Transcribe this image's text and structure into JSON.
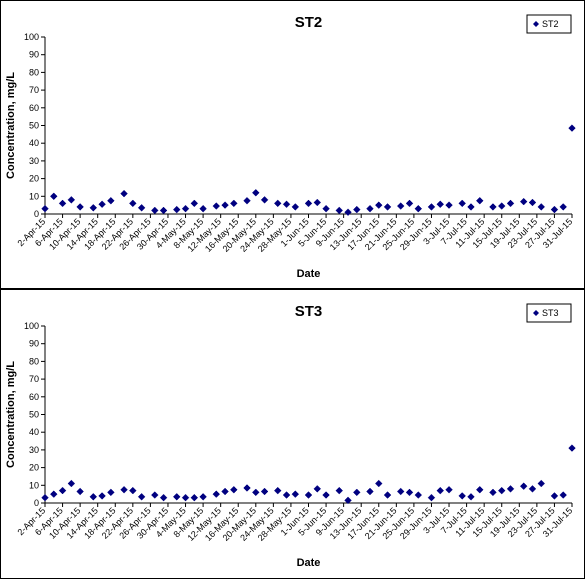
{
  "chart_data": [
    {
      "type": "scatter",
      "title": "ST2",
      "xlabel": "Date",
      "ylabel": "Concentration, mg/L",
      "ylim": [
        0,
        100
      ],
      "yticks": [
        0,
        10,
        20,
        30,
        40,
        50,
        60,
        70,
        80,
        90,
        100
      ],
      "xlim": [
        "2015-04-02",
        "2015-07-31"
      ],
      "xtick_labels": [
        "2-Apr-15",
        "6-Apr-15",
        "10-Apr-15",
        "14-Apr-15",
        "18-Apr-15",
        "22-Apr-15",
        "26-Apr-15",
        "30-Apr-15",
        "4-May-15",
        "8-May-15",
        "12-May-15",
        "16-May-15",
        "20-May-15",
        "24-May-15",
        "28-May-15",
        "1-Jun-15",
        "5-Jun-15",
        "9-Jun-15",
        "13-Jun-15",
        "17-Jun-15",
        "21-Jun-15",
        "25-Jun-15",
        "29-Jun-15",
        "3-Jul-15",
        "7-Jul-15",
        "11-Jul-15",
        "15-Jul-15",
        "19-Jul-15",
        "23-Jul-15",
        "27-Jul-15",
        "31-Jul-15"
      ],
      "grid": false,
      "legend_position": "top-right",
      "color": "#000080",
      "series": [
        {
          "name": "ST2",
          "points": [
            {
              "x": "2015-04-02",
              "y": 3
            },
            {
              "x": "2015-04-04",
              "y": 10
            },
            {
              "x": "2015-04-06",
              "y": 6
            },
            {
              "x": "2015-04-08",
              "y": 8
            },
            {
              "x": "2015-04-10",
              "y": 4
            },
            {
              "x": "2015-04-13",
              "y": 3.5
            },
            {
              "x": "2015-04-15",
              "y": 5.5
            },
            {
              "x": "2015-04-17",
              "y": 7.5
            },
            {
              "x": "2015-04-20",
              "y": 11.5
            },
            {
              "x": "2015-04-22",
              "y": 6
            },
            {
              "x": "2015-04-24",
              "y": 3.5
            },
            {
              "x": "2015-04-27",
              "y": 2
            },
            {
              "x": "2015-04-29",
              "y": 2
            },
            {
              "x": "2015-05-02",
              "y": 2.5
            },
            {
              "x": "2015-05-04",
              "y": 3
            },
            {
              "x": "2015-05-06",
              "y": 6
            },
            {
              "x": "2015-05-08",
              "y": 3
            },
            {
              "x": "2015-05-11",
              "y": 4.5
            },
            {
              "x": "2015-05-13",
              "y": 5
            },
            {
              "x": "2015-05-15",
              "y": 6
            },
            {
              "x": "2015-05-18",
              "y": 7.5
            },
            {
              "x": "2015-05-20",
              "y": 12
            },
            {
              "x": "2015-05-22",
              "y": 8
            },
            {
              "x": "2015-05-25",
              "y": 6
            },
            {
              "x": "2015-05-27",
              "y": 5.5
            },
            {
              "x": "2015-05-29",
              "y": 4
            },
            {
              "x": "2015-06-01",
              "y": 6
            },
            {
              "x": "2015-06-03",
              "y": 6.5
            },
            {
              "x": "2015-06-05",
              "y": 3
            },
            {
              "x": "2015-06-08",
              "y": 2
            },
            {
              "x": "2015-06-10",
              "y": 1
            },
            {
              "x": "2015-06-12",
              "y": 2.5
            },
            {
              "x": "2015-06-15",
              "y": 3
            },
            {
              "x": "2015-06-17",
              "y": 5
            },
            {
              "x": "2015-06-19",
              "y": 4
            },
            {
              "x": "2015-06-22",
              "y": 4.5
            },
            {
              "x": "2015-06-24",
              "y": 6
            },
            {
              "x": "2015-06-26",
              "y": 3
            },
            {
              "x": "2015-06-29",
              "y": 4
            },
            {
              "x": "2015-07-01",
              "y": 5.5
            },
            {
              "x": "2015-07-03",
              "y": 5
            },
            {
              "x": "2015-07-06",
              "y": 6
            },
            {
              "x": "2015-07-08",
              "y": 4
            },
            {
              "x": "2015-07-10",
              "y": 7.5
            },
            {
              "x": "2015-07-13",
              "y": 4
            },
            {
              "x": "2015-07-15",
              "y": 4.5
            },
            {
              "x": "2015-07-17",
              "y": 6
            },
            {
              "x": "2015-07-20",
              "y": 7
            },
            {
              "x": "2015-07-22",
              "y": 6.5
            },
            {
              "x": "2015-07-24",
              "y": 4
            },
            {
              "x": "2015-07-27",
              "y": 2.5
            },
            {
              "x": "2015-07-29",
              "y": 4
            },
            {
              "x": "2015-07-31",
              "y": 48.5
            }
          ]
        }
      ]
    },
    {
      "type": "scatter",
      "title": "ST3",
      "xlabel": "Date",
      "ylabel": "Concentration, mg/L",
      "ylim": [
        0,
        100
      ],
      "yticks": [
        0,
        10,
        20,
        30,
        40,
        50,
        60,
        70,
        80,
        90,
        100
      ],
      "xlim": [
        "2015-04-02",
        "2015-07-31"
      ],
      "xtick_labels": [
        "2-Apr-15",
        "6-Apr-15",
        "10-Apr-15",
        "14-Apr-15",
        "18-Apr-15",
        "22-Apr-15",
        "26-Apr-15",
        "30-Apr-15",
        "4-May-15",
        "8-May-15",
        "12-May-15",
        "16-May-15",
        "20-May-15",
        "24-May-15",
        "28-May-15",
        "1-Jun-15",
        "5-Jun-15",
        "9-Jun-15",
        "13-Jun-15",
        "17-Jun-15",
        "21-Jun-15",
        "25-Jun-15",
        "29-Jun-15",
        "3-Jul-15",
        "7-Jul-15",
        "11-Jul-15",
        "15-Jul-15",
        "19-Jul-15",
        "23-Jul-15",
        "27-Jul-15",
        "31-Jul-15"
      ],
      "grid": false,
      "legend_position": "top-right",
      "color": "#000080",
      "series": [
        {
          "name": "ST3",
          "points": [
            {
              "x": "2015-04-02",
              "y": 3
            },
            {
              "x": "2015-04-04",
              "y": 5
            },
            {
              "x": "2015-04-06",
              "y": 7
            },
            {
              "x": "2015-04-08",
              "y": 11
            },
            {
              "x": "2015-04-10",
              "y": 6.5
            },
            {
              "x": "2015-04-13",
              "y": 3.5
            },
            {
              "x": "2015-04-15",
              "y": 4
            },
            {
              "x": "2015-04-17",
              "y": 6
            },
            {
              "x": "2015-04-20",
              "y": 7.5
            },
            {
              "x": "2015-04-22",
              "y": 7
            },
            {
              "x": "2015-04-24",
              "y": 3.5
            },
            {
              "x": "2015-04-27",
              "y": 4.5
            },
            {
              "x": "2015-04-29",
              "y": 3
            },
            {
              "x": "2015-05-02",
              "y": 3.5
            },
            {
              "x": "2015-05-04",
              "y": 3
            },
            {
              "x": "2015-05-06",
              "y": 3
            },
            {
              "x": "2015-05-08",
              "y": 3.5
            },
            {
              "x": "2015-05-11",
              "y": 5
            },
            {
              "x": "2015-05-13",
              "y": 6.5
            },
            {
              "x": "2015-05-15",
              "y": 7.5
            },
            {
              "x": "2015-05-18",
              "y": 8.5
            },
            {
              "x": "2015-05-20",
              "y": 6
            },
            {
              "x": "2015-05-22",
              "y": 6.5
            },
            {
              "x": "2015-05-25",
              "y": 7
            },
            {
              "x": "2015-05-27",
              "y": 4.5
            },
            {
              "x": "2015-05-29",
              "y": 5
            },
            {
              "x": "2015-06-01",
              "y": 4.5
            },
            {
              "x": "2015-06-03",
              "y": 8
            },
            {
              "x": "2015-06-05",
              "y": 4.5
            },
            {
              "x": "2015-06-08",
              "y": 7
            },
            {
              "x": "2015-06-10",
              "y": 1.5
            },
            {
              "x": "2015-06-12",
              "y": 6
            },
            {
              "x": "2015-06-15",
              "y": 6.5
            },
            {
              "x": "2015-06-17",
              "y": 11
            },
            {
              "x": "2015-06-19",
              "y": 4.5
            },
            {
              "x": "2015-06-22",
              "y": 6.5
            },
            {
              "x": "2015-06-24",
              "y": 6
            },
            {
              "x": "2015-06-26",
              "y": 4.5
            },
            {
              "x": "2015-06-29",
              "y": 3
            },
            {
              "x": "2015-07-01",
              "y": 7
            },
            {
              "x": "2015-07-03",
              "y": 7.5
            },
            {
              "x": "2015-07-06",
              "y": 4
            },
            {
              "x": "2015-07-08",
              "y": 3.5
            },
            {
              "x": "2015-07-10",
              "y": 7.5
            },
            {
              "x": "2015-07-13",
              "y": 6
            },
            {
              "x": "2015-07-15",
              "y": 7
            },
            {
              "x": "2015-07-17",
              "y": 8
            },
            {
              "x": "2015-07-20",
              "y": 9.5
            },
            {
              "x": "2015-07-22",
              "y": 8
            },
            {
              "x": "2015-07-24",
              "y": 11
            },
            {
              "x": "2015-07-27",
              "y": 4
            },
            {
              "x": "2015-07-29",
              "y": 4.5
            },
            {
              "x": "2015-07-31",
              "y": 31
            }
          ]
        }
      ]
    }
  ]
}
